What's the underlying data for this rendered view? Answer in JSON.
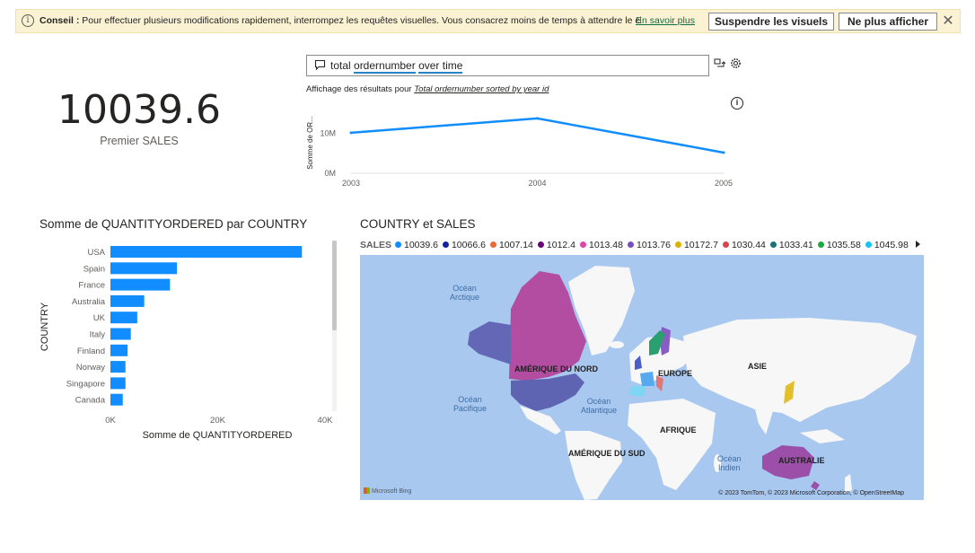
{
  "tip": {
    "label": "Conseil :",
    "text": "Pour effectuer plusieurs modifications rapidement, interrompez les requêtes visuelles. Vous consacrez moins de temps à attendre le charge...",
    "link": "En savoir plus",
    "suspend_label": "Suspendre les visuels",
    "dismiss_label": "Ne plus afficher",
    "close_glyph": "✕"
  },
  "kpi": {
    "value": "10039.6",
    "label": "Premier SALES"
  },
  "qa": {
    "query_prefix": "total ",
    "query_word1": "ordernumber",
    "query_mid": " ",
    "query_word2": "over time",
    "results_prefix": "Affichage des résultats pour ",
    "results_query": "Total ordernumber sorted by year id",
    "info_glyph": "i"
  },
  "line_chart": {
    "chart_data": {
      "type": "line",
      "x": [
        "2003",
        "2004",
        "2005"
      ],
      "values": [
        10200000,
        13800000,
        5200000
      ],
      "ylabel": "Somme de OR...",
      "y_ticks": [
        "10M",
        "0M"
      ],
      "ylim": [
        0,
        14000000
      ],
      "color": "#118dff"
    }
  },
  "bar_chart": {
    "title": "Somme de QUANTITYORDERED par COUNTRY",
    "chart_data": {
      "type": "bar",
      "orientation": "horizontal",
      "categories": [
        "USA",
        "Spain",
        "France",
        "Australia",
        "UK",
        "Italy",
        "Finland",
        "Norway",
        "Singapore",
        "Canada"
      ],
      "values": [
        35700,
        12400,
        11100,
        6300,
        5000,
        3800,
        3200,
        2800,
        2800,
        2300
      ],
      "xlabel": "Somme de QUANTITYORDERED",
      "ylabel": "COUNTRY",
      "x_ticks": [
        "0K",
        "20K",
        "40K"
      ],
      "xlim": [
        0,
        40000
      ],
      "color": "#118dff"
    }
  },
  "map": {
    "title": "COUNTRY et SALES",
    "legend_label": "SALES",
    "legend": [
      {
        "value": "10039.6",
        "color": "#118dff"
      },
      {
        "value": "10066.6",
        "color": "#12239e"
      },
      {
        "value": "1007.14",
        "color": "#e66c37"
      },
      {
        "value": "1012.4",
        "color": "#6b007b"
      },
      {
        "value": "1013.48",
        "color": "#e044a7"
      },
      {
        "value": "1013.76",
        "color": "#744ec2"
      },
      {
        "value": "10172.7",
        "color": "#d9b300"
      },
      {
        "value": "1030.44",
        "color": "#d64550"
      },
      {
        "value": "1033.41",
        "color": "#197278"
      },
      {
        "value": "1035.58",
        "color": "#1aab40"
      },
      {
        "value": "1045.98",
        "color": "#15c6f4"
      }
    ],
    "labels": {
      "north_america": "AMÉRIQUE DU NORD",
      "europe": "EUROPE",
      "asia": "ASIE",
      "africa": "AFRIQUE",
      "south_america": "AMÉRIQUE DU SUD",
      "australia": "AUSTRALIE",
      "arctic_l1": "Océan",
      "arctic_l2": "Arctique",
      "pacific_l1": "Océan",
      "pacific_l2": "Pacifique",
      "atlantic_l1": "Océan",
      "atlantic_l2": "Atlantique",
      "indian_l1": "Océan",
      "indian_l2": "Indien"
    },
    "attribution": "© 2023 TomTom, © 2023 Microsoft Corporation, © OpenStreetMap",
    "provider": "Microsoft Bing"
  }
}
